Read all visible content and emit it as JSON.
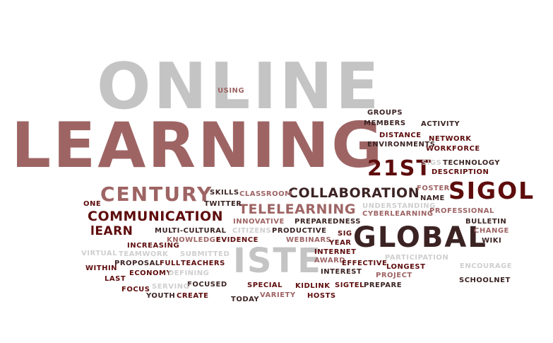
{
  "colors": {
    "gray": "#c4c4c4",
    "rose": "#9e6464",
    "maroon": "#5e0c0c",
    "dark": "#3c2323",
    "lightgray": "#cfcfcf"
  },
  "words": [
    {
      "text": "ONLINE",
      "color": "gray"
    },
    {
      "text": "LEARNING",
      "color": "rose"
    },
    {
      "text": "ISTE",
      "color": "gray"
    },
    {
      "text": "GLOBAL",
      "color": "dark"
    },
    {
      "text": "SIGOL",
      "color": "maroon"
    },
    {
      "text": "21ST",
      "color": "maroon"
    },
    {
      "text": "CENTURY",
      "color": "rose"
    },
    {
      "text": "COLLABORATION",
      "color": "dark"
    },
    {
      "text": "TELELEARNING",
      "color": "rose"
    },
    {
      "text": "COMMUNICATION",
      "color": "maroon"
    },
    {
      "text": "lEARN",
      "color": "maroon"
    },
    {
      "text": "USING",
      "color": "rose"
    },
    {
      "text": "GROUPS",
      "color": "dark"
    },
    {
      "text": "MEMBERS",
      "color": "dark"
    },
    {
      "text": "ACTIVITY",
      "color": "dark"
    },
    {
      "text": "DISTANCE",
      "color": "maroon"
    },
    {
      "text": "ENVIRONMENTS",
      "color": "dark"
    },
    {
      "text": "NETWORK",
      "color": "maroon"
    },
    {
      "text": "WORKFORCE",
      "color": "maroon"
    },
    {
      "text": "SIGS",
      "color": "lightgray"
    },
    {
      "text": "TECHNOLOGY",
      "color": "dark"
    },
    {
      "text": "DESCRIPTION",
      "color": "maroon"
    },
    {
      "text": "SKILLS",
      "color": "dark"
    },
    {
      "text": "CLASSROOM",
      "color": "rose"
    },
    {
      "text": "FOSTER",
      "color": "rose"
    },
    {
      "text": "NAME",
      "color": "dark"
    },
    {
      "text": "ONE",
      "color": "maroon"
    },
    {
      "text": "TWITTER",
      "color": "dark"
    },
    {
      "text": "UNDERSTANDING",
      "color": "lightgray"
    },
    {
      "text": "CYBERLEARNING",
      "color": "rose"
    },
    {
      "text": "PROFESSIONAL",
      "color": "rose"
    },
    {
      "text": "INNOVATIVE",
      "color": "rose"
    },
    {
      "text": "PREPAREDNESS",
      "color": "dark"
    },
    {
      "text": "BULLETIN",
      "color": "dark"
    },
    {
      "text": "MULTI-CULTURAL",
      "color": "dark"
    },
    {
      "text": "CITIZENS",
      "color": "lightgray"
    },
    {
      "text": "PRODUCTIVE",
      "color": "dark"
    },
    {
      "text": "SIG",
      "color": "maroon"
    },
    {
      "text": "CHANGE",
      "color": "rose"
    },
    {
      "text": "KNOWLEDGE",
      "color": "rose"
    },
    {
      "text": "EVIDENCE",
      "color": "maroon"
    },
    {
      "text": "WEBINARS",
      "color": "rose"
    },
    {
      "text": "YEAR",
      "color": "maroon"
    },
    {
      "text": "WIKI",
      "color": "dark"
    },
    {
      "text": "INCREASING",
      "color": "maroon"
    },
    {
      "text": "VIRTUAL",
      "color": "lightgray"
    },
    {
      "text": "TEAMWORK",
      "color": "lightgray"
    },
    {
      "text": "SUBMITTED",
      "color": "lightgray"
    },
    {
      "text": "INTERNET",
      "color": "maroon"
    },
    {
      "text": "PARTICIPATION",
      "color": "lightgray"
    },
    {
      "text": "PROPOSAL",
      "color": "dark"
    },
    {
      "text": "FULL",
      "color": "maroon"
    },
    {
      "text": "TEACHERS",
      "color": "maroon"
    },
    {
      "text": "AWARD",
      "color": "rose"
    },
    {
      "text": "EFFECTIVE",
      "color": "maroon"
    },
    {
      "text": "ENCOURAGE",
      "color": "lightgray"
    },
    {
      "text": "WITHIN",
      "color": "maroon"
    },
    {
      "text": "ECONOMY",
      "color": "maroon"
    },
    {
      "text": "DEFINING",
      "color": "lightgray"
    },
    {
      "text": "LONGEST",
      "color": "maroon"
    },
    {
      "text": "INTEREST",
      "color": "dark"
    },
    {
      "text": "PROJECT",
      "color": "rose"
    },
    {
      "text": "LAST",
      "color": "maroon"
    },
    {
      "text": "SCHOOLNET",
      "color": "dark"
    },
    {
      "text": "FOCUSED",
      "color": "dark"
    },
    {
      "text": "SERVING",
      "color": "lightgray"
    },
    {
      "text": "FOCUS",
      "color": "maroon"
    },
    {
      "text": "SPECIAL",
      "color": "maroon"
    },
    {
      "text": "KIDLINK",
      "color": "maroon"
    },
    {
      "text": "SIGTEL",
      "color": "maroon"
    },
    {
      "text": "PREPARE",
      "color": "dark"
    },
    {
      "text": "YOUTH",
      "color": "dark"
    },
    {
      "text": "CREATE",
      "color": "maroon"
    },
    {
      "text": "TODAY",
      "color": "dark"
    },
    {
      "text": "VARIETY",
      "color": "rose"
    },
    {
      "text": "HOSTS",
      "color": "maroon"
    }
  ]
}
